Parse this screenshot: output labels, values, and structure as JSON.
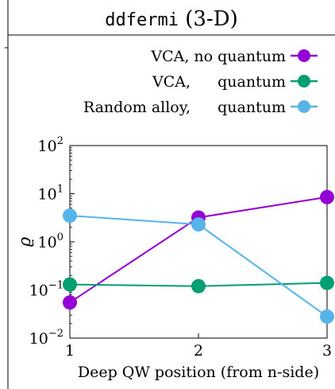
{
  "panel": {
    "title_code": "ddfermi",
    "title_suffix": "(3-D)"
  },
  "chart_data": {
    "type": "line",
    "x": [
      1,
      2,
      3
    ],
    "xticks": [
      "1",
      "2",
      "3"
    ],
    "xlabel": "Deep QW position (from n-side)",
    "ylabel": "ϱ",
    "yscale": "log",
    "ylim": [
      0.01,
      100
    ],
    "yticks": [
      {
        "base": "10",
        "exp": "−2",
        "value": 0.01
      },
      {
        "base": "10",
        "exp": "−1",
        "value": 0.1
      },
      {
        "base": "10",
        "exp": "0",
        "value": 1
      },
      {
        "base": "10",
        "exp": "1",
        "value": 10
      },
      {
        "base": "10",
        "exp": "2",
        "value": 100
      }
    ],
    "grid": false,
    "legend_position": "top-right",
    "series": [
      {
        "name": "VCA, no quantum",
        "legend_left": "VCA, no quantum",
        "legend_right": "",
        "color": "#9400d3",
        "values": [
          0.055,
          3.2,
          8.5
        ]
      },
      {
        "name": "VCA, quantum",
        "legend_left": "VCA,",
        "legend_right": "quantum",
        "color": "#009e73",
        "values": [
          0.13,
          0.12,
          0.14
        ]
      },
      {
        "name": "Random alloy, quantum",
        "legend_left": "Random alloy,",
        "legend_right": "quantum",
        "color": "#56b4e9",
        "values": [
          3.5,
          2.3,
          0.028
        ]
      }
    ]
  }
}
